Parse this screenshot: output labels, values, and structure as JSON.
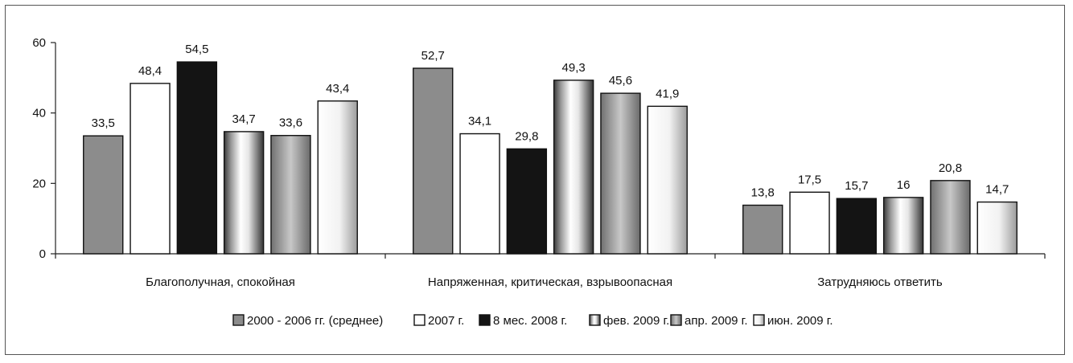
{
  "chart_data": {
    "type": "bar",
    "categories": [
      "Благополучная, спокойная",
      "Напряженная, критическая, взрывоопасная",
      "Затрудняюсь ответить"
    ],
    "series": [
      {
        "name": "2000 - 2006 гг. (среднее)",
        "labels": [
          "33,5",
          "52,7",
          "13,8"
        ],
        "values": [
          33.5,
          52.7,
          13.8
        ]
      },
      {
        "name": "2007 г.",
        "labels": [
          "48,4",
          "34,1",
          "17,5"
        ],
        "values": [
          48.4,
          34.1,
          17.5
        ]
      },
      {
        "name": "8 мес. 2008 г.",
        "labels": [
          "54,5",
          "29,8",
          "15,7"
        ],
        "values": [
          54.5,
          29.8,
          15.7
        ]
      },
      {
        "name": "фев. 2009 г.",
        "labels": [
          "34,7",
          "49,3",
          "16"
        ],
        "values": [
          34.7,
          49.3,
          16
        ]
      },
      {
        "name": "апр. 2009 г.",
        "labels": [
          "33,6",
          "45,6",
          "20,8"
        ],
        "values": [
          33.6,
          45.6,
          20.8
        ]
      },
      {
        "name": "июн. 2009 г.",
        "labels": [
          "43,4",
          "41,9",
          "14,7"
        ],
        "values": [
          43.4,
          41.9,
          14.7
        ]
      }
    ],
    "ylim": [
      0,
      60
    ],
    "yticks": [
      0,
      20,
      40,
      60
    ],
    "ytick_labels": [
      "0",
      "20",
      "40",
      "60"
    ],
    "legend_position": "bottom",
    "grid": false
  }
}
